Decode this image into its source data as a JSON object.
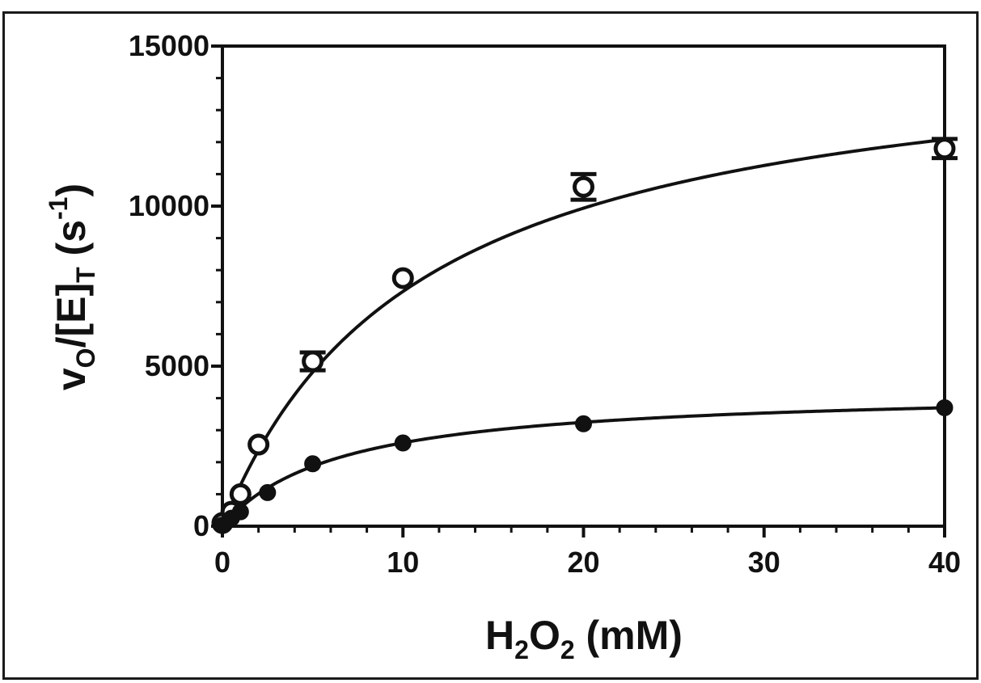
{
  "chart_data": {
    "type": "scatter",
    "title": "",
    "xlabel": {
      "main": "H",
      "sub1": "2",
      "mid": "O",
      "sub2": "2",
      "tail": " (mM)"
    },
    "ylabel": {
      "v": "v",
      "v_sub": "O",
      "mid": "/[E]",
      "e_sub": "T",
      "unit_open": " (s",
      "unit_sup": "-1",
      "unit_close": ")"
    },
    "xlim": [
      0,
      40
    ],
    "ylim": [
      0,
      15000
    ],
    "x_ticks": [
      0,
      10,
      20,
      30,
      40
    ],
    "y_ticks": [
      0,
      5000,
      10000,
      15000
    ],
    "grid": false,
    "legend": "none",
    "series": [
      {
        "marker": "open-circle",
        "x": [
          0,
          0.5,
          1,
          2,
          5,
          10,
          20,
          40
        ],
        "y": [
          100,
          450,
          1000,
          2550,
          5150,
          7750,
          10600,
          11800
        ],
        "err": [
          0,
          0,
          0,
          0,
          280,
          0,
          400,
          300
        ],
        "fit": {
          "model": "michaelis-menten",
          "vmax": 15400,
          "km": 11
        }
      },
      {
        "marker": "filled-circle",
        "x": [
          0,
          0.5,
          1,
          2.5,
          5,
          10,
          20,
          40
        ],
        "y": [
          30,
          250,
          450,
          1050,
          1950,
          2600,
          3200,
          3700
        ],
        "err": [
          0,
          0,
          0,
          0,
          0,
          0,
          0,
          0
        ],
        "fit": {
          "model": "michaelis-menten",
          "vmax": 4300,
          "km": 6.5
        }
      }
    ],
    "colors": {
      "ink": "#111111",
      "frame": "#1a1a1a",
      "background": "#ffffff"
    }
  }
}
